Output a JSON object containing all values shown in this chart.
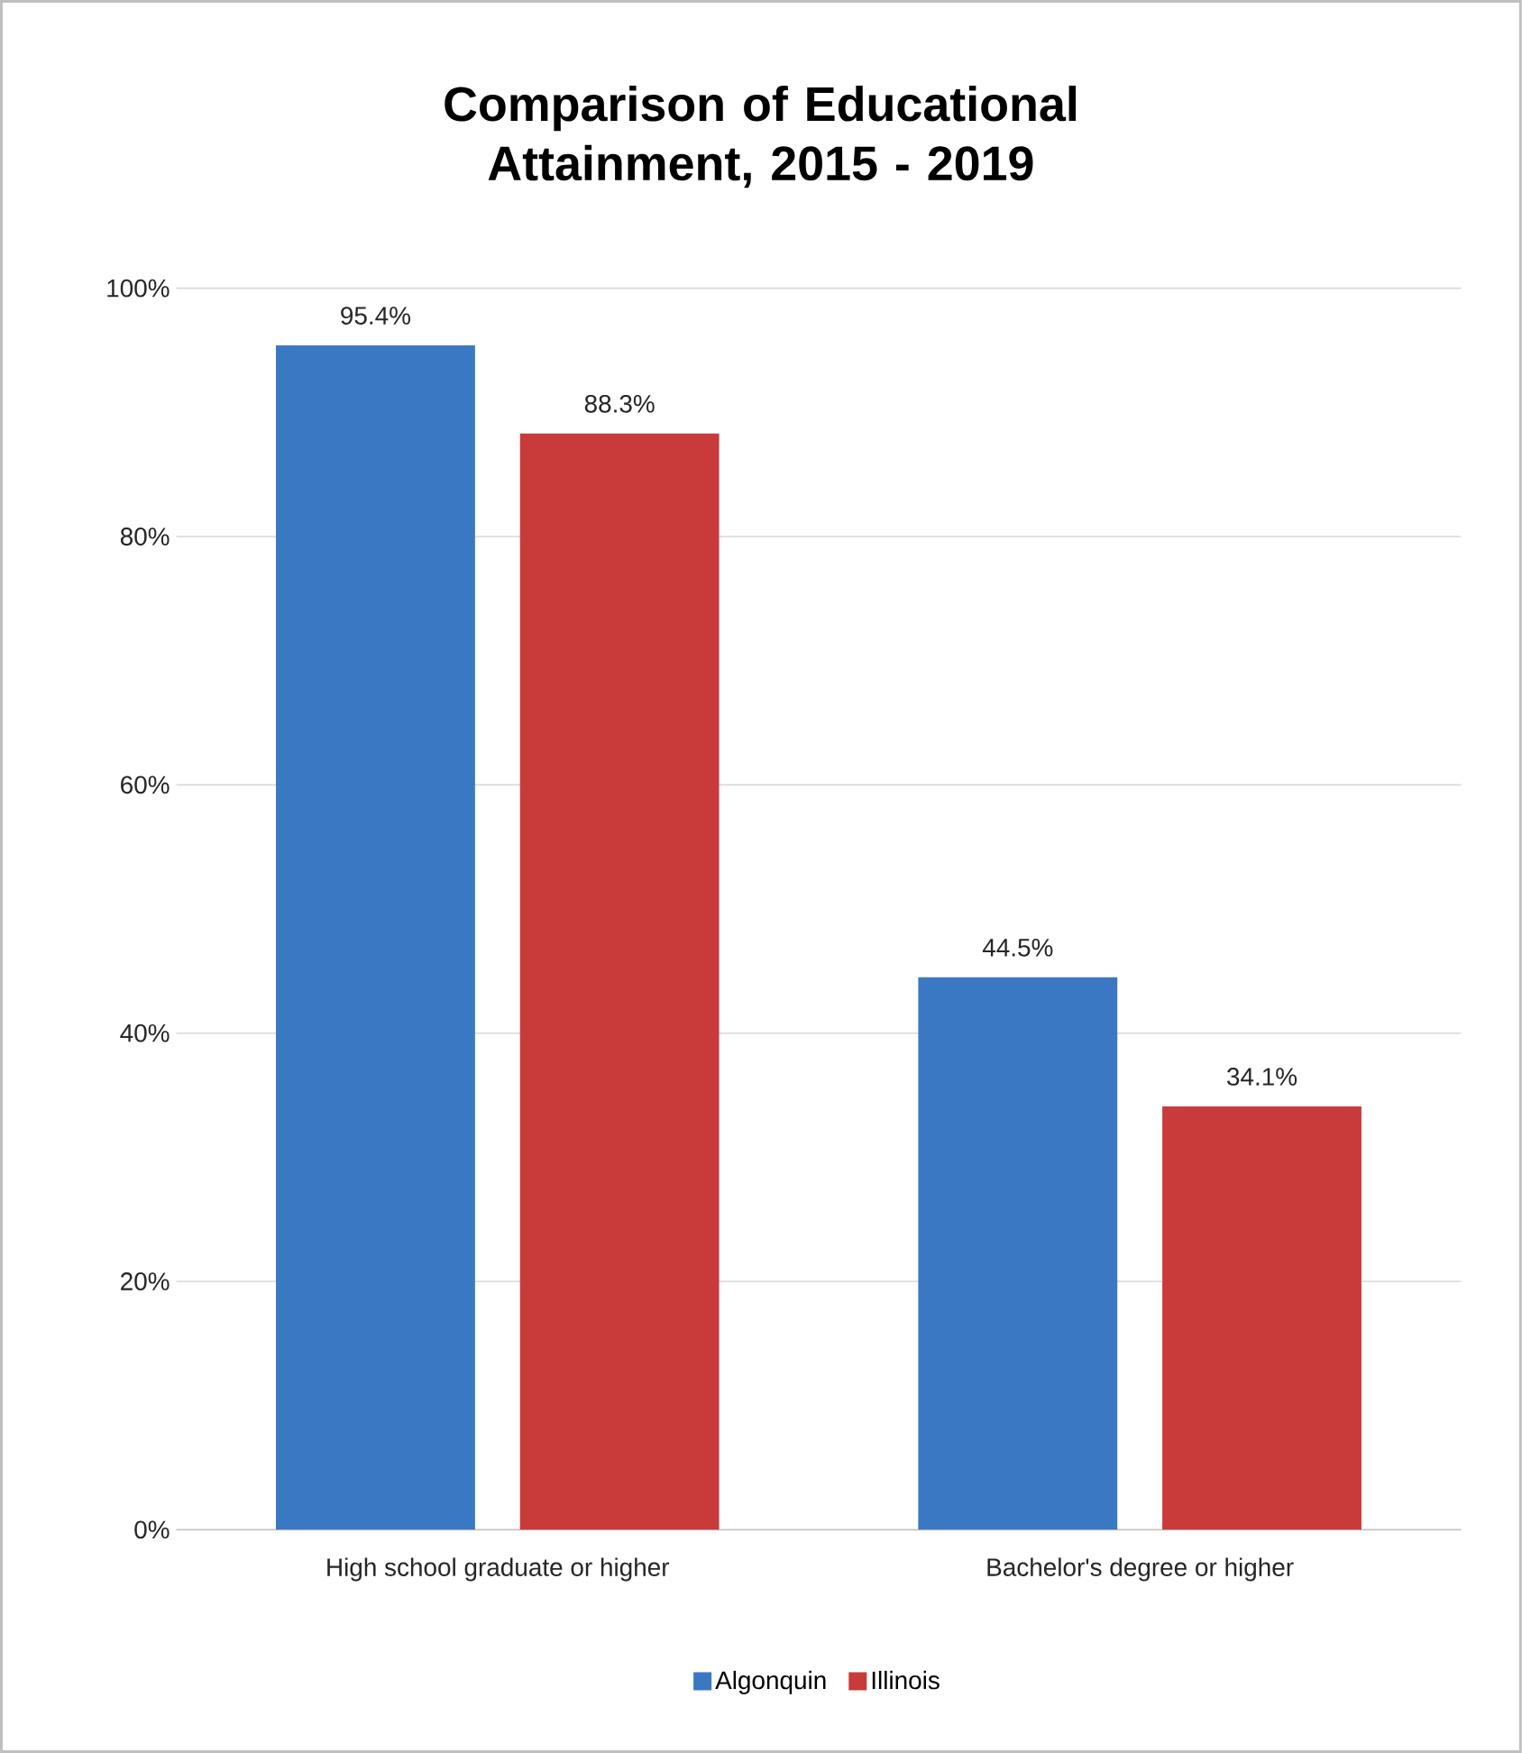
{
  "chart_data": {
    "type": "bar",
    "title": "Comparison of Educational Attainment, 2015 - 2019",
    "categories": [
      "High school graduate or higher",
      "Bachelor's degree or higher"
    ],
    "series": [
      {
        "name": "Algonquin",
        "color": "#3a78c4",
        "values": [
          95.4,
          44.5
        ],
        "value_labels": [
          "95.4%",
          "44.5%"
        ]
      },
      {
        "name": "Illinois",
        "color": "#c83b3a",
        "values": [
          88.3,
          34.1
        ],
        "value_labels": [
          "88.3%",
          "34.1%"
        ]
      }
    ],
    "ylim": [
      0,
      100
    ],
    "yticks": [
      {
        "value": 0,
        "label": "0%"
      },
      {
        "value": 20,
        "label": "20%"
      },
      {
        "value": 40,
        "label": "40%"
      },
      {
        "value": 60,
        "label": "60%"
      },
      {
        "value": 80,
        "label": "80%"
      },
      {
        "value": 100,
        "label": "100%"
      }
    ],
    "grid": "y",
    "legend": "bottom"
  }
}
